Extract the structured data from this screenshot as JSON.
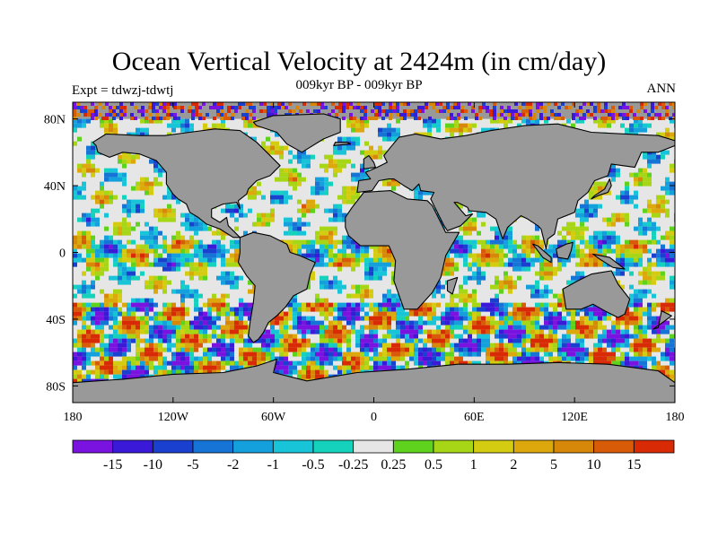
{
  "title": "Ocean Vertical Velocity at 2424m (in cm/day)",
  "experiment_label": "Expt = tdwzj-tdwtj",
  "subtitle": "009kyr BP - 009kyr BP",
  "season": "ANN",
  "map": {
    "projection": "cylindrical equidistant",
    "lon_range": [
      -180,
      180
    ],
    "lat_range": [
      -90,
      90
    ],
    "lat_ticks": [
      {
        "value": 80,
        "label": "80N"
      },
      {
        "value": 40,
        "label": "40N"
      },
      {
        "value": 0,
        "label": "0"
      },
      {
        "value": -40,
        "label": "40S"
      },
      {
        "value": -80,
        "label": "80S"
      }
    ],
    "lon_ticks": [
      {
        "value": -180,
        "label": "180"
      },
      {
        "value": -120,
        "label": "120W"
      },
      {
        "value": -60,
        "label": "60W"
      },
      {
        "value": 0,
        "label": "0"
      },
      {
        "value": 60,
        "label": "60E"
      },
      {
        "value": 120,
        "label": "120E"
      },
      {
        "value": 180,
        "label": "180"
      }
    ],
    "land_color": "#999999",
    "coast_color": "#000000"
  },
  "colorbar": {
    "colors": [
      "#7a12e0",
      "#3a19d8",
      "#1a40d0",
      "#1674d6",
      "#14a0dc",
      "#18c4d8",
      "#14d2bc",
      "#e6e6e6",
      "#5ed21c",
      "#a6d616",
      "#d4cc10",
      "#dca80c",
      "#d88808",
      "#d85c08",
      "#d82a04"
    ],
    "labels": [
      "-15",
      "-10",
      "-5",
      "-2",
      "-1",
      "-0.5",
      "-0.25",
      "0.25",
      "0.5",
      "1",
      "2",
      "5",
      "10",
      "15"
    ]
  }
}
